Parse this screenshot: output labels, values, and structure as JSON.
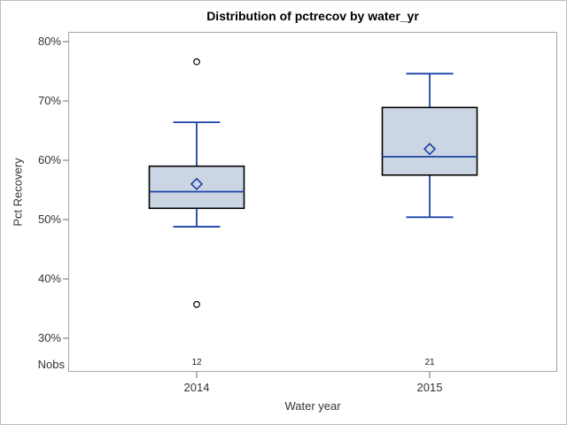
{
  "chart_data": {
    "type": "boxplot",
    "title": "Distribution of pctrecov by water_yr",
    "xlabel": "Water year",
    "ylabel": "Pct Recovery",
    "nobs_label": "Nobs",
    "ylim": [
      24.3,
      81.6
    ],
    "grid": false,
    "legend": "none",
    "y_ticks": [
      {
        "label": "80%",
        "value": 80
      },
      {
        "label": "70%",
        "value": 70
      },
      {
        "label": "60%",
        "value": 60
      },
      {
        "label": "50%",
        "value": 50
      },
      {
        "label": "40%",
        "value": 40
      },
      {
        "label": "30%",
        "value": 30
      }
    ],
    "series": [
      {
        "category": "2014",
        "nobs": "12",
        "low_whisker": 48.8,
        "q1": 51.9,
        "median": 54.7,
        "mean": 56.0,
        "q3": 59.0,
        "high_whisker": 66.4,
        "outliers": [
          76.6,
          35.7
        ]
      },
      {
        "category": "2015",
        "nobs": "21",
        "low_whisker": 50.4,
        "q1": 57.5,
        "median": 60.6,
        "mean": 61.9,
        "q3": 68.9,
        "high_whisker": 74.6,
        "outliers": []
      }
    ],
    "colors": {
      "box_fill": "#ccd5e3",
      "box_border": "#000000",
      "line": "#1a41a5",
      "frame": "#a6a6a6",
      "tick": "#8f8f8f",
      "text": "#333333",
      "title_text": "#000000",
      "outlier_stroke": "#000000",
      "background": "#ffffff",
      "outer_border": "#bdbdbd"
    }
  }
}
